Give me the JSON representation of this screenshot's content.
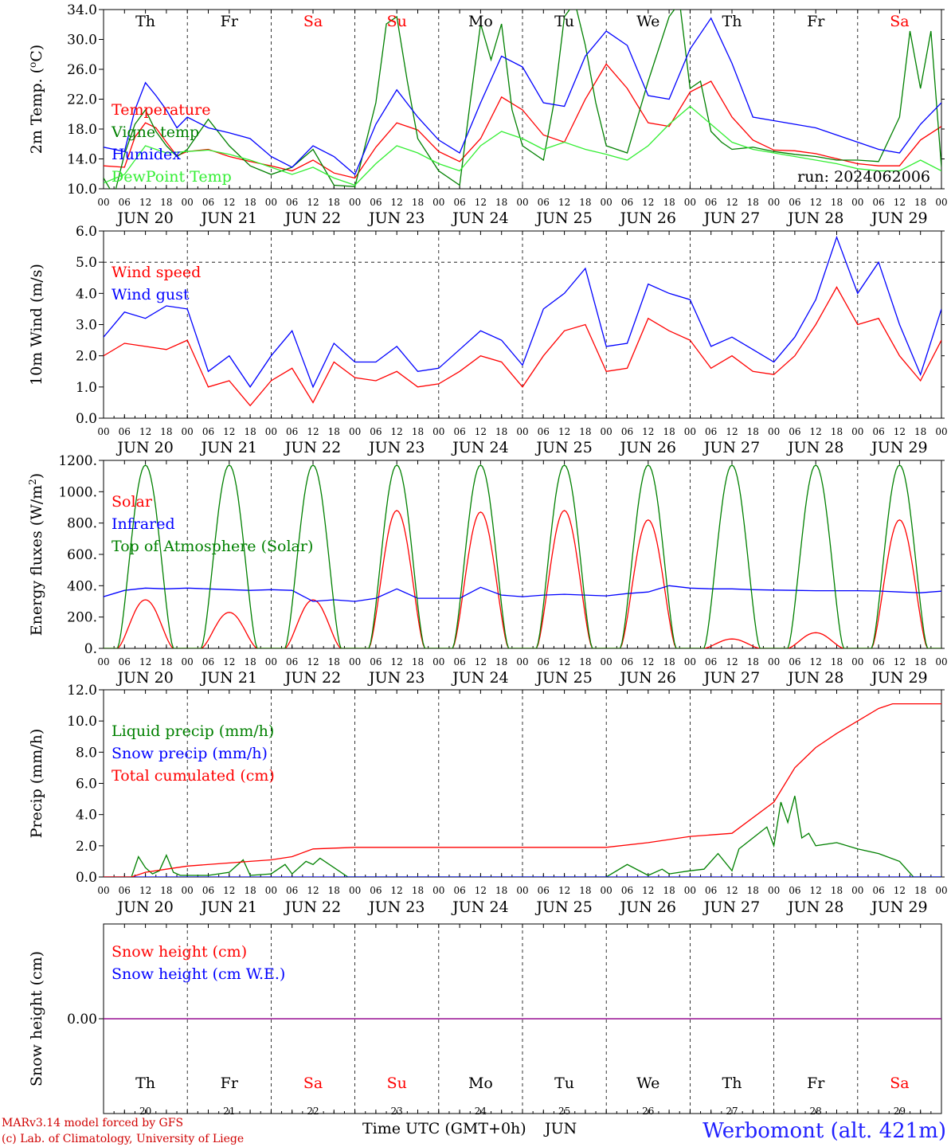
{
  "header": {
    "run_label": "run: 2024062006",
    "station_label": "Werbomont (alt. 421m)",
    "footer_line1": "MARv3.14 model forced by GFS",
    "footer_line2": "(c) Lab. of Climatology, University of Liege",
    "x_axis_label": "Time UTC (GMT+0h)",
    "x_axis_month": "JUN"
  },
  "colors": {
    "red": "#ff0000",
    "blue": "#0000ff",
    "darkgreen": "#008000",
    "lightgreen": "#33ee33",
    "weekend_red": "#ff0000"
  },
  "days": {
    "weekdays": [
      "Th",
      "Fr",
      "Sa",
      "Su",
      "Mo",
      "Tu",
      "We",
      "Th",
      "Fr",
      "Sa"
    ],
    "weekend_flags": [
      false,
      false,
      true,
      true,
      false,
      false,
      false,
      false,
      false,
      true
    ],
    "dates": [
      "JUN 20",
      "JUN 21",
      "JUN 22",
      "JUN 23",
      "JUN 24",
      "JUN 25",
      "JUN 26",
      "JUN 27",
      "JUN 28",
      "JUN 29"
    ],
    "day_numbers": [
      "20",
      "21",
      "22",
      "23",
      "24",
      "25",
      "26",
      "27",
      "28",
      "29"
    ],
    "hour_ticks": [
      "00",
      "06",
      "12",
      "18"
    ]
  },
  "chart_data": [
    {
      "type": "line",
      "id": "temp",
      "ylabel": "2m Temp. (oC)",
      "ylim": [
        10,
        35
      ],
      "yticks": [
        "10.0",
        "14.0",
        "18.0",
        "22.0",
        "26.0",
        "30.0",
        "34.0"
      ],
      "x_unit": "hours since JUN 20 00 UTC",
      "series": [
        {
          "name": "Temperature",
          "color": "#ff0000",
          "x": [
            0,
            6,
            9,
            12,
            15,
            18,
            21,
            24,
            30,
            36,
            42,
            48,
            54,
            60,
            66,
            72,
            78,
            84,
            90,
            96,
            102,
            108,
            114,
            120,
            126,
            132,
            138,
            144,
            150,
            156,
            162,
            168,
            174,
            180,
            186,
            192,
            198,
            204,
            210,
            216,
            222,
            228,
            234,
            240
          ],
          "y": [
            13.2,
            13.0,
            17.2,
            19.2,
            18.5,
            16.5,
            14.6,
            15.2,
            15.5,
            14.5,
            13.8,
            13.2,
            12.5,
            14.0,
            12.2,
            11.5,
            15.8,
            19.2,
            18.2,
            15.2,
            13.8,
            17.0,
            22.8,
            21.0,
            17.5,
            16.5,
            22.5,
            27.4,
            24.0,
            19.2,
            18.7,
            23.5,
            25.0,
            20.0,
            16.8,
            15.4,
            15.3,
            14.9,
            14.2,
            13.5,
            13.2,
            13.2,
            16.8,
            18.7
          ]
        },
        {
          "name": "Vigne temp",
          "color": "#008000",
          "x": [
            0,
            3,
            6,
            9,
            12,
            15,
            18,
            21,
            24,
            30,
            36,
            42,
            48,
            54,
            60,
            66,
            72,
            78,
            81,
            84,
            87,
            90,
            96,
            102,
            105,
            108,
            111,
            114,
            117,
            120,
            126,
            129,
            132,
            135,
            138,
            141,
            144,
            150,
            156,
            162,
            165,
            168,
            171,
            174,
            177,
            180,
            186,
            192,
            198,
            204,
            210,
            216,
            222,
            228,
            231,
            234,
            237,
            240
          ],
          "y": [
            11.5,
            9.0,
            14.8,
            19.0,
            21.0,
            18.0,
            16.0,
            14.5,
            15.5,
            19.7,
            16.0,
            13.2,
            12.0,
            13.0,
            15.5,
            10.5,
            10.3,
            22.0,
            33.0,
            34.0,
            25.0,
            17.0,
            12.5,
            10.5,
            22.0,
            33.0,
            28.0,
            33.0,
            21.0,
            16.0,
            14.0,
            22.0,
            34.0,
            36.0,
            30.0,
            22.0,
            16.0,
            15.0,
            25.0,
            34.0,
            36.0,
            24.0,
            25.0,
            18.0,
            16.5,
            15.5,
            15.8,
            15.2,
            14.8,
            14.5,
            14.0,
            14.0,
            13.8,
            20.0,
            32.0,
            24.0,
            32.0,
            13.0
          ]
        },
        {
          "name": "Humidex",
          "color": "#0000ff",
          "x": [
            0,
            6,
            9,
            12,
            15,
            18,
            21,
            24,
            30,
            36,
            42,
            48,
            54,
            60,
            66,
            72,
            78,
            84,
            90,
            96,
            102,
            108,
            114,
            120,
            126,
            132,
            138,
            144,
            150,
            156,
            162,
            168,
            174,
            180,
            186,
            192,
            198,
            204,
            210,
            216,
            222,
            228,
            234,
            240
          ],
          "y": [
            15.8,
            15.2,
            21.0,
            24.8,
            23.0,
            21.0,
            18.5,
            20.0,
            18.5,
            17.8,
            17.0,
            14.5,
            13.0,
            16.0,
            14.5,
            12.0,
            19.0,
            23.8,
            20.0,
            16.8,
            15.0,
            22.0,
            28.5,
            27.0,
            22.0,
            21.5,
            28.5,
            32.0,
            30.0,
            23.0,
            22.5,
            29.5,
            33.8,
            27.5,
            20.0,
            19.5,
            19.0,
            18.5,
            17.5,
            16.5,
            15.5,
            15.0,
            19.0,
            22.0
          ]
        },
        {
          "name": "DewPoint Temp",
          "color": "#33ee33",
          "x": [
            0,
            6,
            12,
            18,
            24,
            30,
            36,
            42,
            48,
            54,
            60,
            66,
            72,
            78,
            84,
            90,
            96,
            102,
            108,
            114,
            120,
            126,
            132,
            138,
            144,
            150,
            156,
            162,
            168,
            174,
            180,
            186,
            192,
            198,
            204,
            210,
            216,
            222,
            228,
            234,
            240
          ],
          "y": [
            10.8,
            12.0,
            16.0,
            15.0,
            15.2,
            15.4,
            14.8,
            14.0,
            13.0,
            12.0,
            13.0,
            11.5,
            10.5,
            13.5,
            16.0,
            15.0,
            13.5,
            12.5,
            16.0,
            18.0,
            17.0,
            15.5,
            16.5,
            15.5,
            14.8,
            14.0,
            16.0,
            19.0,
            21.5,
            19.0,
            16.5,
            15.5,
            15.0,
            14.5,
            14.0,
            13.5,
            12.8,
            12.5,
            12.5,
            14.0,
            12.5
          ]
        }
      ],
      "annotations": [
        "run: 2024062006"
      ]
    },
    {
      "type": "line",
      "id": "wind",
      "ylabel": "10m Wind (m/s)",
      "ylim": [
        0,
        6
      ],
      "yticks": [
        "0.0",
        "1.0",
        "2.0",
        "3.0",
        "4.0",
        "5.0",
        "6.0"
      ],
      "hline": 5.0,
      "series": [
        {
          "name": "Wind speed",
          "color": "#ff0000",
          "x": [
            0,
            6,
            12,
            18,
            24,
            30,
            36,
            42,
            48,
            54,
            60,
            66,
            72,
            78,
            84,
            90,
            96,
            102,
            108,
            114,
            120,
            126,
            132,
            138,
            144,
            150,
            156,
            162,
            168,
            174,
            180,
            186,
            192,
            198,
            204,
            210,
            216,
            222,
            228,
            234,
            240
          ],
          "y": [
            2.0,
            2.4,
            2.3,
            2.2,
            2.5,
            1.0,
            1.2,
            0.4,
            1.2,
            1.6,
            0.5,
            1.8,
            1.3,
            1.2,
            1.5,
            1.0,
            1.1,
            1.5,
            2.0,
            1.8,
            1.0,
            2.0,
            2.8,
            3.0,
            1.5,
            1.6,
            3.2,
            2.8,
            2.5,
            1.6,
            2.0,
            1.5,
            1.4,
            2.0,
            3.0,
            4.2,
            3.0,
            3.2,
            2.0,
            1.2,
            2.5
          ]
        },
        {
          "name": "Wind gust",
          "color": "#0000ff",
          "x": [
            0,
            6,
            12,
            18,
            24,
            30,
            36,
            42,
            48,
            54,
            60,
            66,
            72,
            78,
            84,
            90,
            96,
            102,
            108,
            114,
            120,
            126,
            132,
            138,
            144,
            150,
            156,
            162,
            168,
            174,
            180,
            186,
            192,
            198,
            204,
            210,
            216,
            222,
            228,
            234,
            240
          ],
          "y": [
            2.6,
            3.4,
            3.2,
            3.6,
            3.5,
            1.5,
            2.0,
            1.0,
            2.0,
            2.8,
            1.0,
            2.4,
            1.8,
            1.8,
            2.3,
            1.5,
            1.6,
            2.2,
            2.8,
            2.5,
            1.7,
            3.5,
            4.0,
            4.8,
            2.3,
            2.4,
            4.3,
            4.0,
            3.8,
            2.3,
            2.6,
            2.2,
            1.8,
            2.6,
            3.8,
            5.8,
            4.0,
            5.0,
            3.0,
            1.4,
            3.5
          ]
        }
      ]
    },
    {
      "type": "line",
      "id": "energy",
      "ylabel": "Energy fluxes (W/m2)",
      "ylim": [
        0,
        1200
      ],
      "yticks": [
        "0.",
        "200.",
        "400.",
        "600.",
        "800.",
        "1000.",
        "1200."
      ],
      "series": [
        {
          "name": "Solar",
          "color": "#ff0000",
          "daily_peaks": [
            310,
            230,
            310,
            880,
            870,
            880,
            820,
            60,
            100,
            820
          ]
        },
        {
          "name": "Infrared",
          "color": "#0000ff",
          "x": [
            0,
            6,
            12,
            18,
            24,
            30,
            36,
            42,
            48,
            54,
            60,
            66,
            72,
            78,
            84,
            90,
            96,
            102,
            108,
            114,
            120,
            126,
            132,
            138,
            144,
            150,
            156,
            162,
            168,
            174,
            180,
            186,
            192,
            198,
            204,
            210,
            216,
            222,
            228,
            234,
            240
          ],
          "y": [
            330,
            370,
            385,
            380,
            385,
            380,
            375,
            370,
            375,
            370,
            300,
            310,
            300,
            320,
            380,
            320,
            320,
            320,
            390,
            340,
            330,
            340,
            345,
            340,
            335,
            350,
            360,
            400,
            385,
            380,
            380,
            375,
            372,
            370,
            368,
            368,
            368,
            366,
            360,
            355,
            365
          ]
        },
        {
          "name": "Top of Atmosphere (Solar)",
          "color": "#008000",
          "daily_peaks": [
            1170,
            1170,
            1170,
            1170,
            1170,
            1170,
            1170,
            1170,
            1170,
            1170
          ]
        }
      ]
    },
    {
      "type": "line",
      "id": "precip",
      "ylabel": "Precip (mm/h)",
      "ylim": [
        0,
        12
      ],
      "yticks": [
        "0.0",
        "2.0",
        "4.0",
        "6.0",
        "8.0",
        "10.0",
        "12.0"
      ],
      "series": [
        {
          "name": "Liquid precip (mm/h)",
          "color": "#008000",
          "x": [
            0,
            8,
            10,
            12,
            14,
            16,
            18,
            20,
            22,
            24,
            30,
            36,
            40,
            42,
            48,
            52,
            54,
            58,
            60,
            62,
            70,
            80,
            120,
            144,
            150,
            156,
            160,
            162,
            168,
            172,
            176,
            180,
            182,
            186,
            190,
            192,
            194,
            196,
            198,
            200,
            202,
            204,
            210,
            216,
            222,
            228,
            232,
            240
          ],
          "y": [
            0,
            0,
            1.3,
            0.6,
            0.2,
            0.4,
            1.4,
            0.3,
            0.1,
            0.1,
            0.1,
            0.3,
            1.1,
            0.1,
            0.2,
            0.8,
            0.2,
            1.0,
            0.8,
            1.2,
            0,
            0,
            0,
            0,
            0.8,
            0.1,
            0.5,
            0.2,
            0.4,
            0.5,
            1.5,
            0.4,
            1.8,
            2.5,
            3.2,
            2.0,
            4.8,
            3.5,
            5.2,
            2.5,
            2.8,
            2.0,
            2.2,
            1.8,
            1.5,
            1.0,
            0,
            0
          ]
        },
        {
          "name": "Snow precip (mm/h)",
          "color": "#0000ff",
          "x": [
            0,
            240
          ],
          "y": [
            0,
            0
          ]
        },
        {
          "name": "Total cumulated (cm)",
          "color": "#ff0000",
          "x": [
            0,
            8,
            12,
            18,
            24,
            36,
            42,
            48,
            54,
            60,
            72,
            120,
            144,
            156,
            168,
            180,
            192,
            198,
            204,
            210,
            216,
            222,
            226,
            228,
            240
          ],
          "y": [
            0,
            0,
            0.3,
            0.5,
            0.7,
            0.9,
            1.0,
            1.1,
            1.3,
            1.8,
            1.9,
            1.9,
            1.9,
            2.2,
            2.6,
            2.8,
            4.8,
            7.0,
            8.3,
            9.2,
            10.0,
            10.8,
            11.1,
            11.1,
            11.1
          ]
        }
      ]
    },
    {
      "type": "line",
      "id": "snow",
      "ylabel": "Snow height (cm)",
      "ytick_label": "0.00",
      "series": [
        {
          "name": "Snow height (cm)",
          "color": "#ff0000",
          "x": [
            0,
            240
          ],
          "y": [
            0,
            0
          ]
        },
        {
          "name": "Snow height (cm W.E.)",
          "color": "#0000ff",
          "x": [
            0,
            240
          ],
          "y": [
            0,
            0
          ]
        }
      ]
    }
  ]
}
